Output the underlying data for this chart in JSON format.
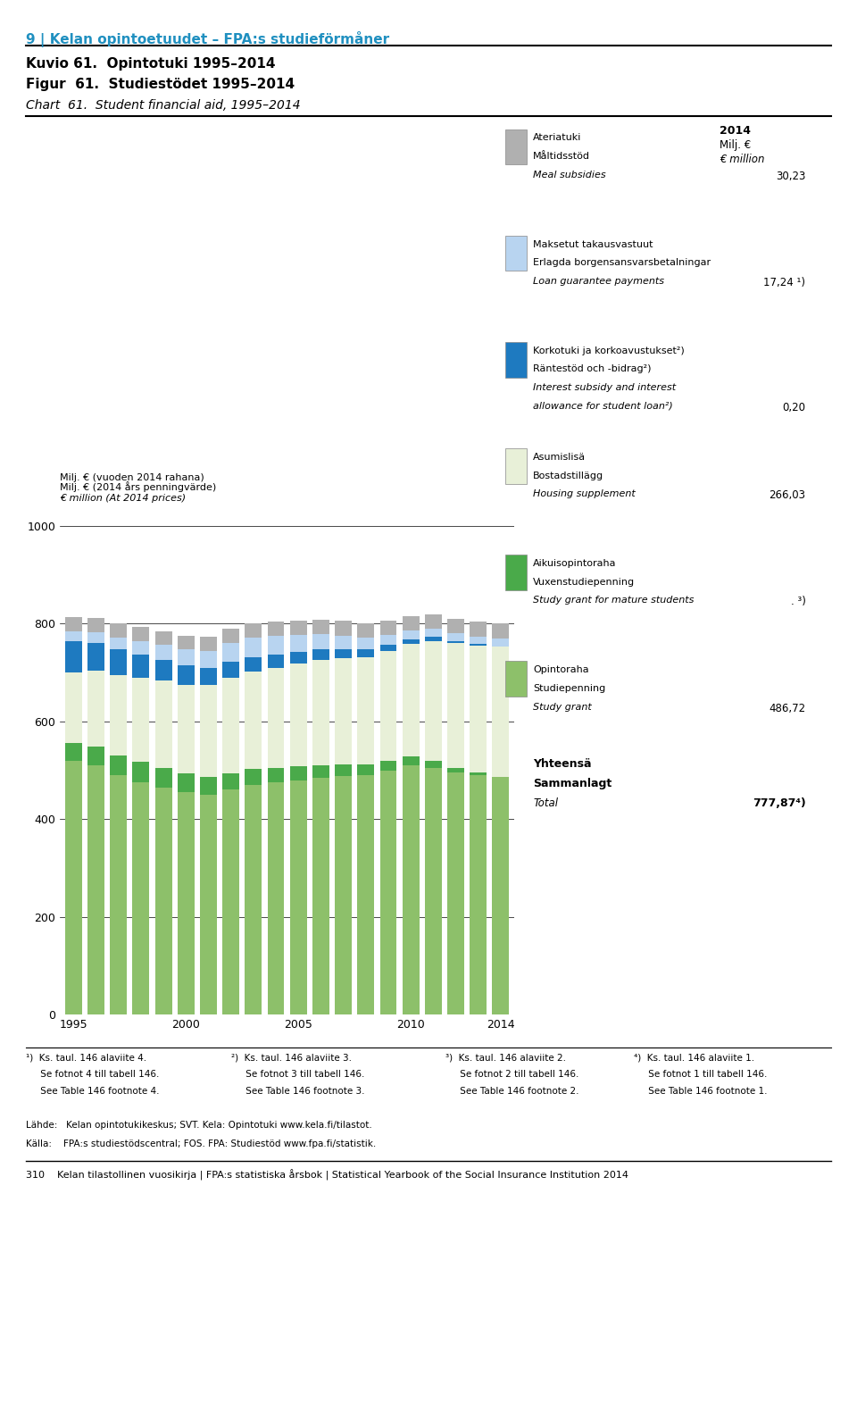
{
  "title_line1": "Kuvio 61.  Opintotuki 1995–2014",
  "title_line2": "Figur  61.  Studiestödet 1995–2014",
  "title_line3": "Chart  61.  Student financial aid, 1995–2014",
  "section_title": "9 | Kelan opintoetuudet – FPA:s studieförmåner",
  "ylabel_fi": "Milj. € (vuoden 2014 rahana)",
  "ylabel_sv": "Milj. € (2014 års penningvärde)",
  "ylabel_en": "€ million (At 2014 prices)",
  "col_header_year": "2014",
  "col_header_unit1": "Milj. €",
  "col_header_unit2": "€ million",
  "years": [
    1995,
    1996,
    1997,
    1998,
    1999,
    2000,
    2001,
    2002,
    2003,
    2004,
    2005,
    2006,
    2007,
    2008,
    2009,
    2010,
    2011,
    2012,
    2013,
    2014
  ],
  "series": {
    "opintoraha": {
      "label_fi": "Opintoraha",
      "label_sv": "Studiepenning",
      "label_en": "Study grant",
      "value_2014": "486,72",
      "color": "#8dc06a",
      "data": [
        520,
        510,
        490,
        475,
        465,
        455,
        450,
        460,
        470,
        475,
        480,
        485,
        488,
        490,
        500,
        510,
        505,
        495,
        490,
        487
      ]
    },
    "aikuisopintoraha": {
      "label_fi": "Aikuisopintoraha",
      "label_sv": "Vuxenstudiepenning",
      "label_en": "Study grant for mature students",
      "value_2014": ". ³)",
      "color": "#4aaa4a",
      "data": [
        35,
        38,
        40,
        42,
        40,
        38,
        36,
        34,
        32,
        30,
        28,
        26,
        24,
        22,
        20,
        18,
        15,
        10,
        5,
        0
      ]
    },
    "asumislisa": {
      "label_fi": "Asumislisä",
      "label_sv": "Bostadstillägg",
      "label_en": "Housing supplement",
      "value_2014": "266,03",
      "color": "#e8f0d8",
      "data": [
        145,
        155,
        165,
        172,
        178,
        182,
        188,
        195,
        200,
        205,
        210,
        215,
        218,
        220,
        225,
        230,
        245,
        255,
        260,
        266
      ]
    },
    "korkotuki": {
      "label_fi": "Korkotuki ja korkoavustukset²)",
      "label_sv": "Räntestöd och -bidrag²)",
      "label_en1": "Interest subsidy and interest",
      "label_en2": "allowance for student loan²)",
      "value_2014": "0,20",
      "color": "#1e7ac0",
      "data": [
        65,
        58,
        52,
        48,
        43,
        40,
        36,
        33,
        30,
        27,
        24,
        21,
        18,
        15,
        12,
        10,
        8,
        5,
        3,
        0.2
      ]
    },
    "takausvastuut": {
      "label_fi": "Maksetut takausvastuut",
      "label_sv": "Erlagda borgensansvarsbetalningar",
      "label_en": "Loan guarantee payments",
      "value_2014": "17,24 ¹)",
      "color": "#b8d4f0",
      "data": [
        20,
        22,
        25,
        28,
        30,
        32,
        35,
        38,
        40,
        38,
        35,
        32,
        28,
        24,
        20,
        18,
        16,
        15,
        16,
        17
      ]
    },
    "ateriatuki": {
      "label_fi": "Ateriatuki",
      "label_sv": "Måltidsstöd",
      "label_en": "Meal subsidies",
      "value_2014": "30,23",
      "color": "#b0b0b0",
      "data": [
        28,
        28,
        29,
        29,
        29,
        29,
        29,
        29,
        29,
        29,
        29,
        29,
        30,
        30,
        30,
        30,
        30,
        30,
        30,
        30
      ]
    }
  },
  "total_label_fi": "Yhteensä",
  "total_label_sv": "Sammanlagt",
  "total_label_en": "Total",
  "total_value": "777,87⁴)",
  "yticks": [
    0,
    200,
    400,
    600,
    800,
    1000
  ],
  "ylim": [
    0,
    1060
  ],
  "footnote1": "¹)  Ks. taul. 146 alaviite 4.\n     Se fotnot 4 till tabell 146.\n     See Table 146 footnote 4.",
  "footnote2": "²)  Ks. taul. 146 alaviite 3.\n     Se fotnot 3 till tabell 146.\n     See Table 146 footnote 3.",
  "footnote3": "³)  Ks. taul. 146 alaviite 2.\n     Se fotnot 2 till tabell 146.\n     See Table 146 footnote 2.",
  "footnote4": "⁴)  Ks. taul. 146 alaviite 1.\n     Se fotnot 1 till tabell 146.\n     See Table 146 footnote 1.",
  "source_fi": "Lähde:   Kelan opintotukikeskus; SVT. Kela: Opintotuki www.kela.fi/tilastot.",
  "source_sv": "Källa:    FPA:s studiestödscentral; FOS. FPA: Studiestöd www.fpa.fi/statistik.",
  "bottom_text": "310    Kelan tilastollinen vuosikirja | FPA:s statistiska årsbok | Statistical Yearbook of the Social Insurance Institution 2014",
  "bg_color": "#ffffff"
}
